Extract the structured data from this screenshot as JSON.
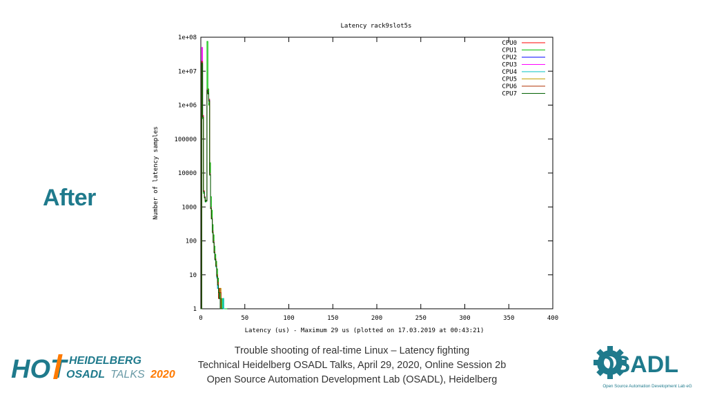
{
  "slide": {
    "side_label": "After",
    "footer_lines": [
      "Trouble shooting of real-time Linux – Latency fighting",
      "Technical Heidelberg OSADL Talks, April 29, 2020, Online Session 2b",
      "Open Source Automation Development Lab (OSADL), Heidelberg"
    ]
  },
  "logos": {
    "hot": {
      "word": "HOT",
      "line1": "HEIDELBERG",
      "line2a": "OSADL",
      "line2b": "TALKS",
      "line2c": "2020"
    },
    "osadl": {
      "word": "OSADL",
      "tagline": "Open Source Automation Development Lab eG"
    }
  },
  "chart_data": {
    "type": "line",
    "title": "Latency rack9slot5s",
    "xlabel": "Latency (us) - Maximum 29 us (plotted on 17.03.2019 at 00:43:21)",
    "ylabel": "Number of latency samples",
    "xlim": [
      0,
      400
    ],
    "ylim": [
      1,
      100000000
    ],
    "yscale": "log",
    "x_ticks": [
      0,
      50,
      100,
      150,
      200,
      250,
      300,
      350,
      400
    ],
    "y_ticks": [
      {
        "v": 1,
        "label": "1"
      },
      {
        "v": 10,
        "label": "10"
      },
      {
        "v": 100,
        "label": "100"
      },
      {
        "v": 1000,
        "label": "1000"
      },
      {
        "v": 10000,
        "label": "10000"
      },
      {
        "v": 100000,
        "label": "100000"
      },
      {
        "v": 1000000,
        "label": "1e+06"
      },
      {
        "v": 10000000,
        "label": "1e+07"
      },
      {
        "v": 100000000,
        "label": "1e+08"
      }
    ],
    "legend_position": "top-right",
    "series": [
      {
        "name": "CPU0",
        "color": "#ff0000",
        "x": [
          0,
          1,
          2,
          3,
          4,
          5,
          6,
          7,
          8,
          9,
          10,
          11,
          12,
          13,
          14,
          15,
          16,
          17,
          18,
          19,
          20,
          21,
          22,
          23,
          24
        ],
        "values": [
          1,
          20000000,
          500000,
          3000,
          2000,
          1500,
          1500,
          3000000,
          2500000,
          1500000,
          10000,
          1000,
          500,
          200,
          100,
          50,
          30,
          20,
          10,
          5,
          3,
          2,
          1,
          1,
          1
        ]
      },
      {
        "name": "CPU1",
        "color": "#00c000",
        "x": [
          0,
          1,
          2,
          3,
          4,
          5,
          6,
          7,
          8,
          9,
          10,
          11,
          12,
          13,
          14,
          15,
          16,
          17,
          18,
          19,
          20,
          21,
          22,
          23,
          24,
          25,
          26,
          27,
          28,
          29
        ],
        "values": [
          1,
          5000000,
          400000,
          2500,
          1800,
          1400,
          1600,
          75000000,
          3000000,
          1000000,
          20000,
          2000,
          800,
          300,
          150,
          70,
          40,
          25,
          15,
          8,
          4,
          3,
          2,
          2,
          1,
          2,
          1,
          1,
          1,
          1
        ]
      },
      {
        "name": "CPU2",
        "color": "#0000ff",
        "x": [
          0,
          1,
          2,
          3,
          4,
          5,
          6,
          7,
          8,
          9,
          10,
          11,
          12,
          13,
          14,
          15,
          16,
          17,
          18,
          19,
          20,
          21,
          22,
          23,
          24,
          25
        ],
        "values": [
          1,
          18000000,
          450000,
          2800,
          1900,
          1500,
          1500,
          2800000,
          2300000,
          1400000,
          9000,
          900,
          450,
          180,
          90,
          45,
          28,
          18,
          9,
          4,
          3,
          2,
          1,
          1,
          1,
          1
        ]
      },
      {
        "name": "CPU3",
        "color": "#ff00ff",
        "x": [
          0,
          1,
          2,
          3,
          4,
          5,
          6,
          7,
          8,
          9,
          10,
          11,
          12,
          13,
          14,
          15,
          16,
          17,
          18,
          19,
          20,
          21,
          22,
          23
        ],
        "values": [
          1,
          50000000,
          480000,
          2900,
          2000,
          1500,
          1500,
          2700000,
          2200000,
          1300000,
          9500,
          950,
          460,
          190,
          95,
          48,
          29,
          19,
          9,
          5,
          3,
          2,
          1,
          1
        ]
      },
      {
        "name": "CPU4",
        "color": "#00c0c0",
        "x": [
          0,
          1,
          2,
          3,
          4,
          5,
          6,
          7,
          8,
          9,
          10,
          11,
          12,
          13,
          14,
          15,
          16,
          17,
          18,
          19,
          20,
          21,
          22,
          23,
          24,
          25,
          26
        ],
        "values": [
          1,
          15000000,
          420000,
          2700,
          1850,
          1450,
          1550,
          2600000,
          2100000,
          1200000,
          8500,
          880,
          440,
          170,
          88,
          44,
          27,
          17,
          8,
          4,
          3,
          2,
          2,
          1,
          1,
          2,
          1
        ]
      },
      {
        "name": "CPU5",
        "color": "#c0a000",
        "x": [
          0,
          1,
          2,
          3,
          4,
          5,
          6,
          7,
          8,
          9,
          10,
          11,
          12,
          13,
          14,
          15,
          16,
          17,
          18,
          19,
          20,
          21,
          22,
          23,
          24
        ],
        "values": [
          1,
          16000000,
          430000,
          2750,
          1870,
          1470,
          1520,
          2650000,
          2150000,
          1250000,
          8700,
          890,
          445,
          175,
          89,
          46,
          28,
          18,
          9,
          5,
          4,
          3,
          4,
          1,
          1
        ]
      },
      {
        "name": "CPU6",
        "color": "#b03000",
        "x": [
          0,
          1,
          2,
          3,
          4,
          5,
          6,
          7,
          8,
          9,
          10,
          11,
          12,
          13,
          14,
          15,
          16,
          17,
          18,
          19,
          20,
          21,
          22,
          23,
          24
        ],
        "values": [
          1,
          19000000,
          460000,
          2850,
          1950,
          1480,
          1530,
          2750000,
          2250000,
          1350000,
          9200,
          920,
          455,
          185,
          92,
          47,
          29,
          19,
          10,
          6,
          2,
          4,
          3,
          1,
          1
        ]
      },
      {
        "name": "CPU7",
        "color": "#006000",
        "x": [
          0,
          1,
          2,
          3,
          4,
          5,
          6,
          7,
          8,
          9,
          10,
          11,
          12,
          13,
          14,
          15,
          16,
          17,
          18,
          19,
          20,
          21,
          22,
          23,
          24
        ],
        "values": [
          1,
          17000000,
          440000,
          2800,
          1900,
          1460,
          1510,
          2700000,
          2200000,
          1300000,
          9000,
          900,
          450,
          180,
          90,
          45,
          28,
          18,
          9,
          5,
          3,
          2,
          1,
          1,
          1
        ]
      }
    ]
  }
}
